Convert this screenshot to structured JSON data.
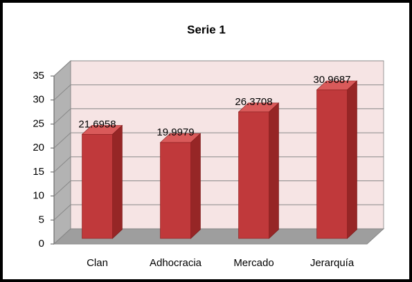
{
  "chart_data": {
    "type": "bar3d",
    "title": "Serie 1",
    "categories": [
      "Clan",
      "Adhocracia",
      "Mercado",
      "Jerarquía"
    ],
    "values": [
      21.6958,
      19.9979,
      26.3708,
      30.9687
    ],
    "color": "#c0393b",
    "ylim": [
      0,
      35
    ],
    "yticks": [
      0,
      5,
      10,
      15,
      20,
      25,
      30,
      35
    ],
    "grid": true
  }
}
